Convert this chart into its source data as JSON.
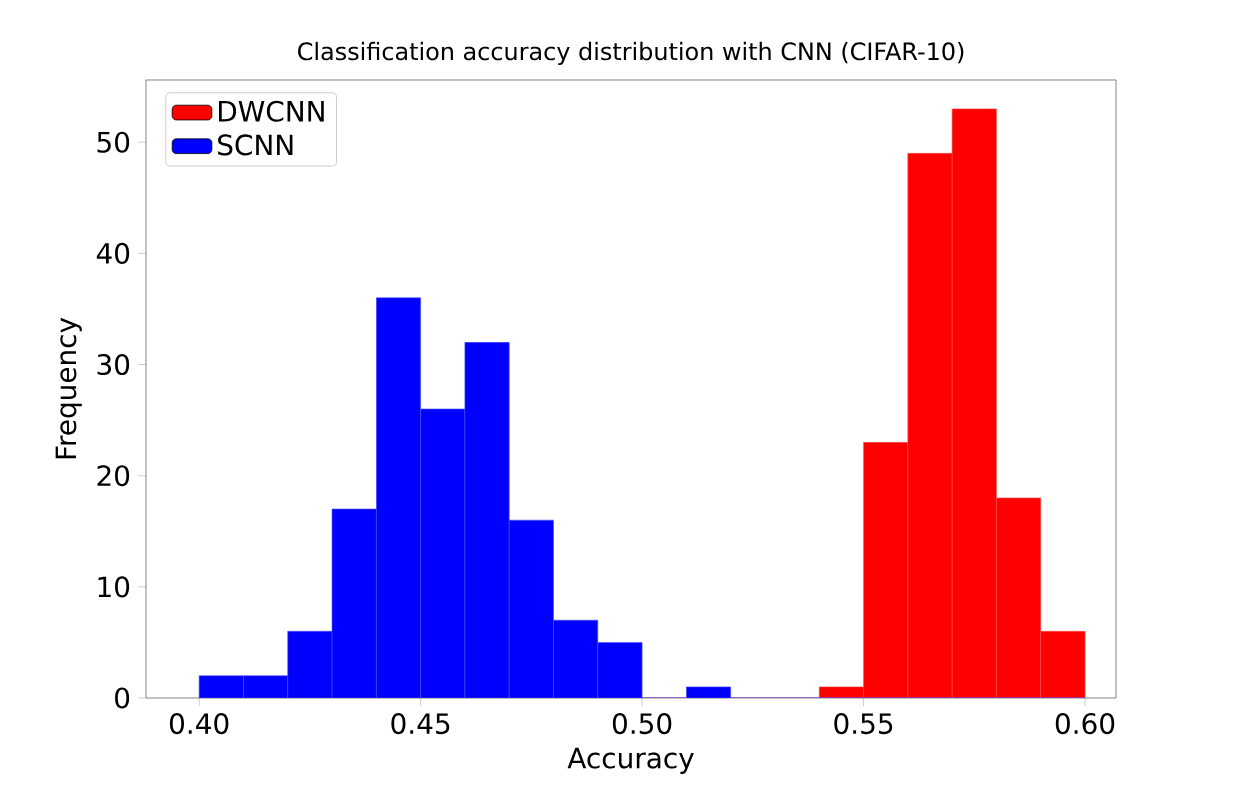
{
  "chart_data": {
    "type": "histogram",
    "title": "Classification accuracy distribution with CNN (CIFAR-10)",
    "xlabel": "Accuracy",
    "ylabel": "Frequency",
    "series": [
      {
        "name": "DWCNN",
        "color": "#ff0000",
        "values": [
          0,
          0,
          0,
          0,
          0,
          0,
          0,
          0,
          0,
          0,
          0,
          0,
          0,
          0,
          1,
          23,
          49,
          53,
          18,
          6
        ]
      },
      {
        "name": "SCNN",
        "color": "#0000ff",
        "values": [
          2,
          2,
          6,
          17,
          36,
          26,
          32,
          16,
          7,
          5,
          0,
          1,
          0,
          0,
          0,
          0,
          0,
          0,
          0,
          0
        ]
      }
    ],
    "bins": [
      0.4,
      0.41,
      0.42,
      0.43,
      0.44,
      0.45,
      0.46,
      0.47,
      0.48,
      0.49,
      0.5,
      0.51,
      0.52,
      0.53,
      0.54,
      0.55,
      0.56,
      0.57,
      0.58,
      0.59,
      0.6
    ],
    "xlim": [
      0.388,
      0.607
    ],
    "ylim": [
      0,
      55.6
    ],
    "xticks": [
      {
        "value": 0.4,
        "label": "0.40"
      },
      {
        "value": 0.45,
        "label": "0.45"
      },
      {
        "value": 0.5,
        "label": "0.50"
      },
      {
        "value": 0.55,
        "label": "0.55"
      },
      {
        "value": 0.6,
        "label": "0.60"
      }
    ],
    "yticks": [
      {
        "value": 0,
        "label": "0"
      },
      {
        "value": 10,
        "label": "10"
      },
      {
        "value": 20,
        "label": "20"
      },
      {
        "value": 30,
        "label": "30"
      },
      {
        "value": 40,
        "label": "40"
      },
      {
        "value": 50,
        "label": "50"
      }
    ],
    "legend": "top left",
    "grid": false
  }
}
